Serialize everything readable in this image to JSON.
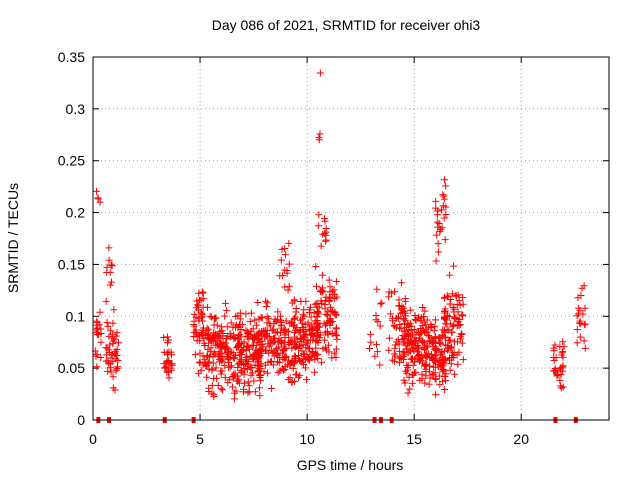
{
  "chart_data": {
    "type": "scatter",
    "title": "Day 086 of 2021, SRMTID for receiver ohi3",
    "xlabel": "GPS time / hours",
    "ylabel": "SRMTID / TECUs",
    "xlim": [
      0,
      24.1
    ],
    "ylim": [
      0,
      0.35
    ],
    "grid": true,
    "marker_color": "#ff0000",
    "x_ticks": [
      {
        "v": 0,
        "label": "0"
      },
      {
        "v": 5,
        "label": "5"
      },
      {
        "v": 10,
        "label": "10"
      },
      {
        "v": 15,
        "label": "15"
      },
      {
        "v": 20,
        "label": "20"
      }
    ],
    "y_ticks": [
      {
        "v": 0,
        "label": "0"
      },
      {
        "v": 0.05,
        "label": "0.05"
      },
      {
        "v": 0.1,
        "label": "0.1"
      },
      {
        "v": 0.15,
        "label": "0.15"
      },
      {
        "v": 0.2,
        "label": "0.2"
      },
      {
        "v": 0.25,
        "label": "0.25"
      },
      {
        "v": 0.3,
        "label": "0.3"
      },
      {
        "v": 0.35,
        "label": "0.35"
      }
    ],
    "zero_markers_x": [
      0.25,
      0.75,
      3.35,
      4.7,
      13.15,
      13.45,
      13.95,
      21.6,
      22.55
    ],
    "clusters": [
      {
        "x": [
          0.1,
          0.4
        ],
        "y": [
          0.04,
          0.12
        ],
        "n": 18
      },
      {
        "x": [
          0.15,
          0.35
        ],
        "y": [
          0.2,
          0.23
        ],
        "n": 4
      },
      {
        "x": [
          0.6,
          1.2
        ],
        "y": [
          0.02,
          0.12
        ],
        "n": 45
      },
      {
        "x": [
          0.6,
          0.9
        ],
        "y": [
          0.12,
          0.17
        ],
        "n": 10
      },
      {
        "x": [
          3.3,
          3.7
        ],
        "y": [
          0.02,
          0.09
        ],
        "n": 28
      },
      {
        "x": [
          4.7,
          5.2
        ],
        "y": [
          0.03,
          0.15
        ],
        "n": 50
      },
      {
        "x": [
          5.2,
          8.0
        ],
        "y": [
          0.01,
          0.12
        ],
        "n": 330
      },
      {
        "x": [
          8.0,
          9.5
        ],
        "y": [
          0.02,
          0.13
        ],
        "n": 150
      },
      {
        "x": [
          8.6,
          9.2
        ],
        "y": [
          0.12,
          0.175
        ],
        "n": 14
      },
      {
        "x": [
          9.5,
          10.5
        ],
        "y": [
          0.02,
          0.13
        ],
        "n": 110
      },
      {
        "x": [
          10.4,
          11.4
        ],
        "y": [
          0.04,
          0.16
        ],
        "n": 90
      },
      {
        "x": [
          10.5,
          10.9
        ],
        "y": [
          0.15,
          0.21
        ],
        "n": 12
      },
      {
        "x": [
          10.55,
          10.75
        ],
        "y": [
          0.26,
          0.29
        ],
        "n": 3
      },
      {
        "x": [
          10.6,
          10.75
        ],
        "y": [
          0.33,
          0.336
        ],
        "n": 1
      },
      {
        "x": [
          12.9,
          13.5
        ],
        "y": [
          0.03,
          0.15
        ],
        "n": 14
      },
      {
        "x": [
          13.8,
          14.6
        ],
        "y": [
          0.03,
          0.155
        ],
        "n": 55
      },
      {
        "x": [
          14.5,
          16.0
        ],
        "y": [
          0.02,
          0.12
        ],
        "n": 190
      },
      {
        "x": [
          16.0,
          16.5
        ],
        "y": [
          0.02,
          0.1
        ],
        "n": 50
      },
      {
        "x": [
          16.0,
          16.5
        ],
        "y": [
          0.14,
          0.255
        ],
        "n": 25
      },
      {
        "x": [
          16.4,
          17.3
        ],
        "y": [
          0.03,
          0.15
        ],
        "n": 90
      },
      {
        "x": [
          21.5,
          22.1
        ],
        "y": [
          0.01,
          0.09
        ],
        "n": 32
      },
      {
        "x": [
          22.6,
          23.0
        ],
        "y": [
          0.05,
          0.15
        ],
        "n": 20
      }
    ]
  }
}
